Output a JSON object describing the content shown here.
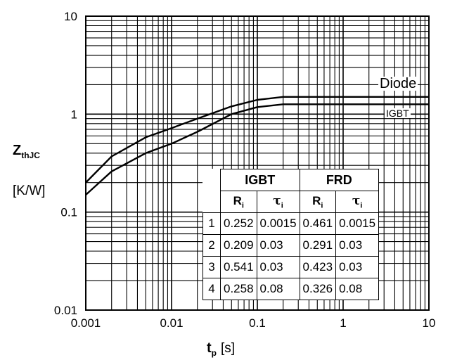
{
  "chart_data": {
    "type": "line",
    "x_scale": "log",
    "y_scale": "log",
    "xlim": [
      0.001,
      10
    ],
    "ylim": [
      0.01,
      10
    ],
    "grid": true,
    "x_ticks": [
      "0.001",
      "0.01",
      "0.1",
      "1",
      "10"
    ],
    "y_ticks": [
      "10",
      "1",
      "0.1",
      "0.01"
    ],
    "ylabel": "Z",
    "ylabel_sub": "thJC",
    "yunit": "[K/W]",
    "xlabel": "t",
    "xlabel_sub": "p",
    "xunit": "[s]",
    "series": [
      {
        "name": "Diode",
        "x": [
          0.001,
          0.002,
          0.005,
          0.01,
          0.02,
          0.05,
          0.1,
          0.2,
          0.5,
          1,
          10
        ],
        "y": [
          0.2,
          0.37,
          0.58,
          0.72,
          0.9,
          1.2,
          1.4,
          1.5,
          1.5,
          1.5,
          1.5
        ]
      },
      {
        "name": "IGBT",
        "x": [
          0.001,
          0.002,
          0.005,
          0.01,
          0.02,
          0.05,
          0.1,
          0.2,
          0.5,
          1,
          10
        ],
        "y": [
          0.15,
          0.26,
          0.4,
          0.5,
          0.66,
          1.0,
          1.18,
          1.26,
          1.26,
          1.26,
          1.26
        ]
      }
    ]
  },
  "colors": {
    "line": "#000000",
    "grid": "#000000",
    "background": "#ffffff"
  },
  "table": {
    "groups": [
      "IGBT",
      "FRD"
    ],
    "col_r": "R",
    "col_tau": "τ",
    "col_sub": "i",
    "rows": [
      {
        "i": "1",
        "igbt_r": "0.252",
        "igbt_tau": "0.0015",
        "frd_r": "0.461",
        "frd_tau": "0.0015"
      },
      {
        "i": "2",
        "igbt_r": "0.209",
        "igbt_tau": "0.03",
        "frd_r": "0.291",
        "frd_tau": "0.03"
      },
      {
        "i": "3",
        "igbt_r": "0.541",
        "igbt_tau": "0.03",
        "frd_r": "0.423",
        "frd_tau": "0.03"
      },
      {
        "i": "4",
        "igbt_r": "0.258",
        "igbt_tau": "0.08",
        "frd_r": "0.326",
        "frd_tau": "0.08"
      }
    ]
  }
}
